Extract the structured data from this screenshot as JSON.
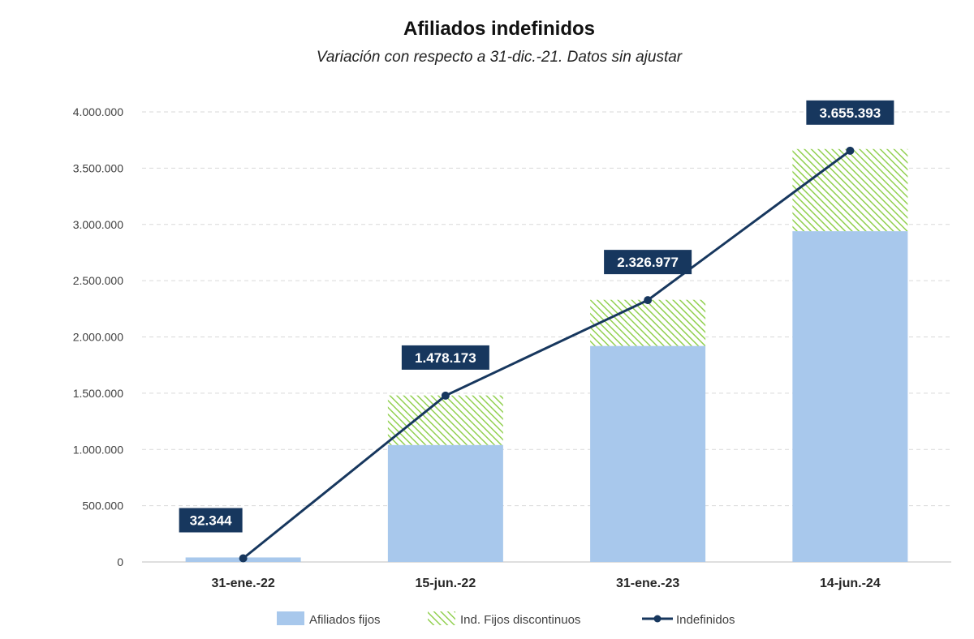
{
  "chart_data": {
    "type": "bar",
    "title": "Afiliados indefinidos",
    "subtitle": "Variación con respecto a 31-dic.-21. Datos sin ajustar",
    "categories": [
      "31-ene.-22",
      "15-jun.-22",
      "31-ene.-23",
      "14-jun.-24"
    ],
    "ylim": [
      0,
      4000000
    ],
    "yticks": [
      0,
      500000,
      1000000,
      1500000,
      2000000,
      2500000,
      3000000,
      3500000,
      4000000
    ],
    "ytick_labels": [
      "0",
      "500.000",
      "1.000.000",
      "1.500.000",
      "2.000.000",
      "2.500.000",
      "3.000.000",
      "3.500.000",
      "4.000.000"
    ],
    "grid": true,
    "legend_position": "bottom",
    "series": [
      {
        "name": "Afiliados fijos",
        "kind": "bar-stacked",
        "color": "#a8c8ec",
        "values": [
          40000,
          1040000,
          1920000,
          2940000
        ]
      },
      {
        "name": "Ind. Fijos discontinuos",
        "kind": "bar-stacked-hatched",
        "color": "#92d050",
        "values": [
          0,
          440000,
          410000,
          730000
        ]
      },
      {
        "name": "Indefinidos",
        "kind": "line",
        "color": "#17375e",
        "values": [
          32344,
          1478173,
          2326977,
          3655393
        ],
        "labels": [
          "32.344",
          "1.478.173",
          "2.326.977",
          "3.655.393"
        ]
      }
    ]
  }
}
